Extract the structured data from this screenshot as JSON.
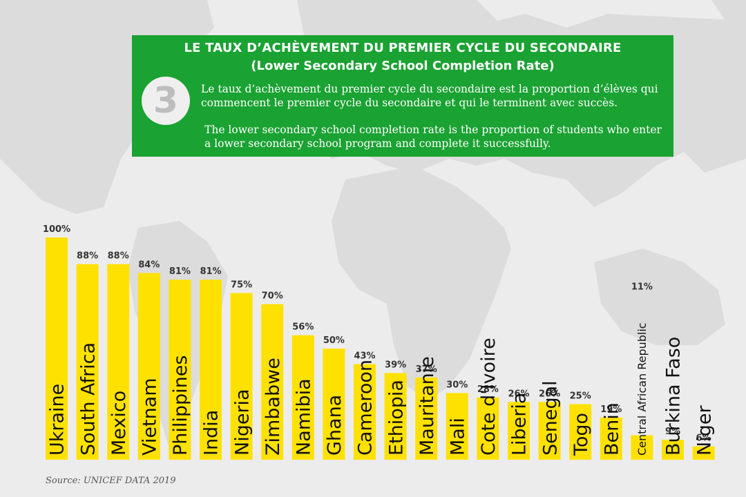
{
  "panel": {
    "number": "3",
    "title_fr": "LE TAUX D’ACHÈVEMENT DU PREMIER CYCLE DU SECONDAIRE",
    "title_en": "(Lower Secondary School Completion Rate)",
    "desc_fr": "Le taux d’achèvement du premier cycle du secondaire est la proportion d’élèves qui commencent le premier cycle du secondaire et qui le terminent avec succès.",
    "desc_en": "The lower secondary school completion rate is the proportion  of students who enter a lower secondary school  program and complete it successfully.",
    "color": "#1aa232"
  },
  "chart_data": {
    "type": "bar",
    "categories": [
      "Ukraine",
      "South Africa",
      "Mexico",
      "Vietnam",
      "Philippines",
      "India",
      "Nigeria",
      "Zimbabwe",
      "Namibia",
      "Ghana",
      "Cameroon",
      "Ethiopia",
      "Mauritanie",
      "Mali",
      "Cote d'Ivoire",
      "Liberia",
      "Senegal",
      "Togo",
      "Benin",
      "Central African Republic",
      "Burkina Faso",
      "Niger"
    ],
    "values": [
      100,
      88,
      88,
      84,
      81,
      81,
      75,
      70,
      56,
      50,
      43,
      39,
      37,
      30,
      28,
      26,
      26,
      25,
      19,
      11,
      9,
      6
    ],
    "value_labels": [
      "100%",
      "88%",
      "88%",
      "84%",
      "81%",
      "81%",
      "75%",
      "70%",
      "56%",
      "50%",
      "43%",
      "39%",
      "37%",
      "30%",
      "28%",
      "26%",
      "26%",
      "25%",
      "19%",
      "11%",
      "9%",
      "6%"
    ],
    "bar_color": "#ffe100",
    "ylim": [
      0,
      100
    ]
  },
  "source": "Source: UNICEF DATA 2019"
}
